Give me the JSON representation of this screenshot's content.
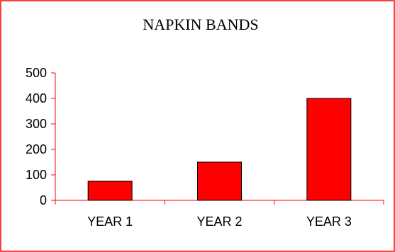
{
  "chart_data": {
    "type": "bar",
    "title": "NAPKIN BANDS",
    "categories": [
      "YEAR 1",
      "YEAR 2",
      "YEAR 3"
    ],
    "values": [
      75,
      150,
      400
    ],
    "xlabel": "",
    "ylabel": "",
    "ylim": [
      0,
      500
    ],
    "yticks": [
      0,
      100,
      200,
      300,
      400,
      500
    ],
    "grid": false,
    "legend": "none",
    "colors": {
      "bar_fill": "#ff0000",
      "bar_stroke": "#000000",
      "axis": "#ff0000",
      "frame": "#ff0000"
    }
  }
}
